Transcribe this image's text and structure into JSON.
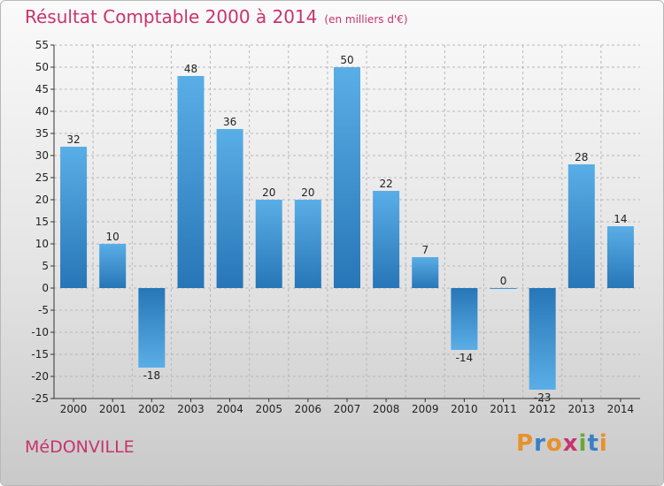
{
  "header": {
    "title": "Résultat Comptable 2000 à 2014",
    "subtitle": "(en milliers d'€)"
  },
  "footer": {
    "place": "MéDONVILLE",
    "brand": "Proxiti",
    "brand_colors": [
      "#e8912c",
      "#3a7fc4",
      "#e8912c",
      "#c8336e",
      "#6aa83a",
      "#3a7fc4",
      "#e8912c"
    ]
  },
  "colors": {
    "title": "#c8336e",
    "bar_light": "#5aaee6",
    "bar_dark": "#2776b7",
    "axis": "#333333",
    "grid": "#b8b8b8"
  },
  "chart_data": {
    "type": "bar",
    "categories": [
      "2000",
      "2001",
      "2002",
      "2003",
      "2004",
      "2005",
      "2006",
      "2007",
      "2008",
      "2009",
      "2010",
      "2011",
      "2012",
      "2013",
      "2014"
    ],
    "values": [
      32,
      10,
      -18,
      48,
      36,
      20,
      20,
      50,
      22,
      7,
      -14,
      0,
      -23,
      28,
      14
    ],
    "data_labels": [
      "32",
      "10",
      "-18",
      "48",
      "36",
      "20",
      "20",
      "50",
      "22",
      "7",
      "-14",
      "0",
      "-23",
      "28",
      "14"
    ],
    "ylim": [
      -25,
      55
    ],
    "yticks": [
      55,
      50,
      45,
      40,
      35,
      30,
      25,
      20,
      15,
      10,
      5,
      0,
      -5,
      -10,
      -15,
      -20,
      -25
    ],
    "grid": true
  }
}
